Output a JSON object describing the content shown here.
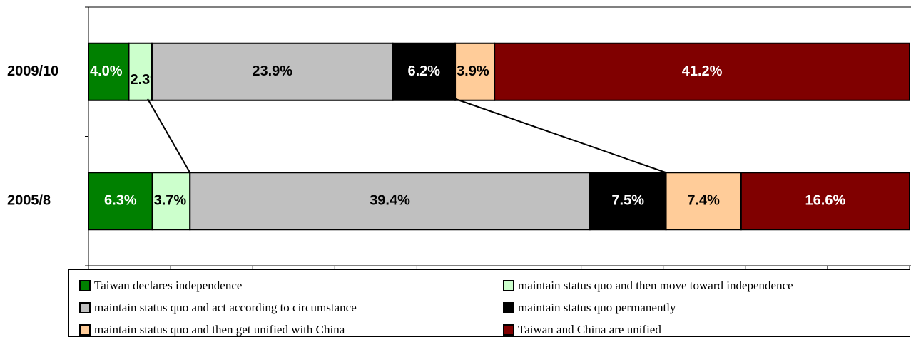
{
  "chart_data": {
    "type": "bar",
    "orientation": "horizontal",
    "stacked": "percent",
    "categories": [
      "2009/10",
      "2005/8"
    ],
    "xlim": [
      0,
      100
    ],
    "xticks": [
      0,
      10,
      20,
      30,
      40,
      50,
      60,
      70,
      80,
      90,
      100
    ],
    "series": [
      {
        "name": "Taiwan declares independence",
        "color": "#008000",
        "values": [
          4.0,
          6.3
        ],
        "value_labels": [
          "4.0%",
          "6.3%"
        ]
      },
      {
        "name": "maintain status quo and then move toward independence",
        "color": "#ccffcc",
        "values": [
          2.3,
          3.7
        ],
        "value_labels": [
          "2.3%",
          "3.7%"
        ]
      },
      {
        "name": "maintain status quo and act according to circumstance",
        "color": "#c0c0c0",
        "values": [
          23.9,
          39.4
        ],
        "value_labels": [
          "23.9%",
          "39.4%"
        ]
      },
      {
        "name": "maintain status quo permanently",
        "color": "#000000",
        "values": [
          6.2,
          7.5
        ],
        "value_labels": [
          "6.2%",
          "7.5%"
        ]
      },
      {
        "name": "maintain status quo and then get unified with China",
        "color": "#ffcc99",
        "values": [
          3.9,
          7.4
        ],
        "value_labels": [
          "3.9%",
          "7.4%"
        ]
      },
      {
        "name": "Taiwan and China are unified",
        "color": "#800000",
        "values": [
          41.2,
          16.6
        ],
        "value_labels": [
          "41.2%",
          "16.6%"
        ]
      }
    ],
    "legend": "bottom"
  }
}
